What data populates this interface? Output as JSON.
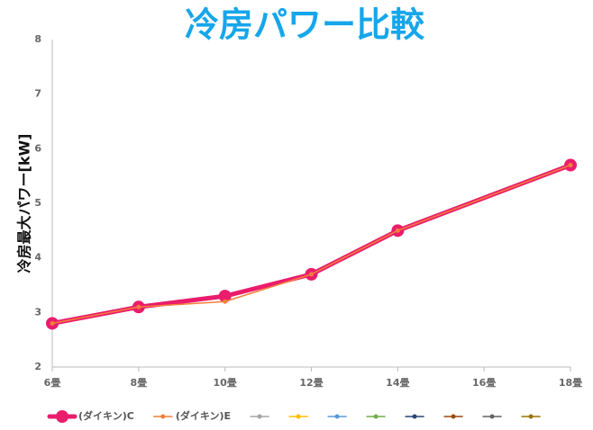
{
  "chart_data": {
    "type": "line",
    "title": "冷房パワー比較",
    "y_label": "冷房最大パワー[kW]",
    "x": [
      6,
      8,
      10,
      12,
      14,
      18
    ],
    "xlim": [
      6,
      18
    ],
    "xticks": [
      {
        "value": 6,
        "label": "6畳"
      },
      {
        "value": 8,
        "label": "8畳"
      },
      {
        "value": 10,
        "label": "10畳"
      },
      {
        "value": 12,
        "label": "12畳"
      },
      {
        "value": 14,
        "label": "14畳"
      },
      {
        "value": 16,
        "label": "16畳"
      },
      {
        "value": 18,
        "label": "18畳"
      }
    ],
    "ylim": [
      2,
      8
    ],
    "yticks": [
      2,
      3,
      4,
      5,
      6,
      7,
      8
    ],
    "grid": false,
    "legend": "bottom",
    "series": [
      {
        "name": "(ダイキン)C",
        "color": "#ea1c6c",
        "values": [
          2.8,
          3.1,
          3.3,
          3.7,
          4.5,
          5.7
        ]
      },
      {
        "name": "(ダイキン)E",
        "color": "#f2803a",
        "values": [
          2.8,
          3.1,
          3.2,
          3.7,
          4.5,
          5.7
        ]
      },
      {
        "color": "#a5a5a5",
        "values": [
          null,
          null,
          null,
          null,
          null,
          null
        ]
      },
      {
        "color": "#ffc000",
        "values": [
          null,
          null,
          null,
          null,
          null,
          null
        ]
      },
      {
        "color": "#5b9bd5",
        "values": [
          null,
          null,
          null,
          null,
          null,
          null
        ]
      },
      {
        "color": "#70ad47",
        "values": [
          null,
          null,
          null,
          null,
          null,
          null
        ]
      },
      {
        "color": "#264478",
        "values": [
          null,
          null,
          null,
          null,
          null,
          null
        ]
      },
      {
        "color": "#9e480e",
        "values": [
          null,
          null,
          null,
          null,
          null,
          null
        ]
      },
      {
        "color": "#636363",
        "values": [
          null,
          null,
          null,
          null,
          null,
          null
        ]
      },
      {
        "color": "#997300",
        "values": [
          null,
          null,
          null,
          null,
          null,
          null
        ]
      }
    ]
  }
}
